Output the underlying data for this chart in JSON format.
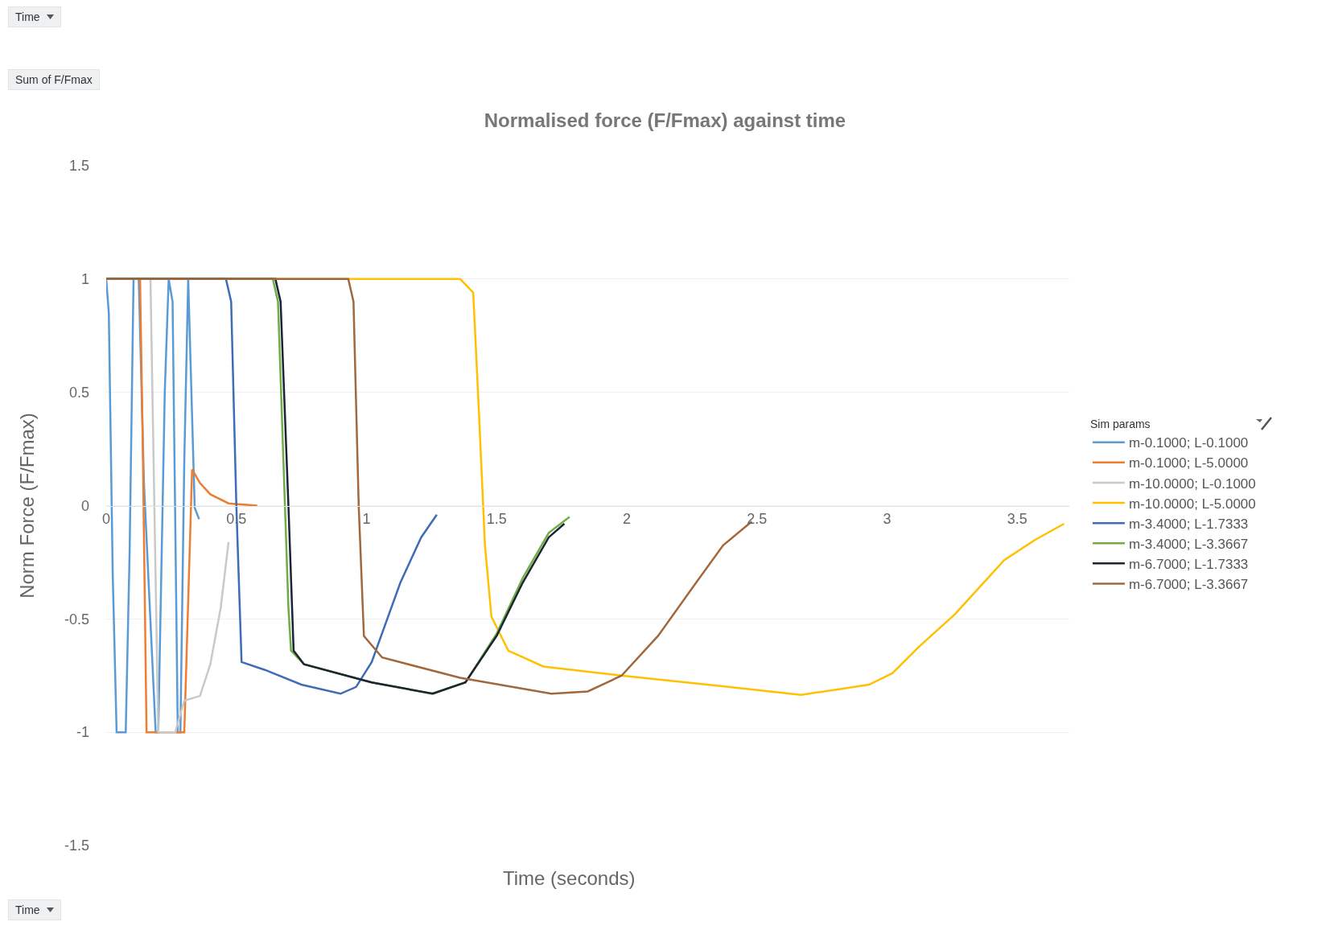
{
  "chart_data": {
    "type": "line",
    "title": "Normalised force (F/Fmax) against time",
    "xlabel": "Time (seconds)",
    "ylabel": "Norm Force (F/Fmax)",
    "legend_title": "Sim params",
    "annotations": [
      "Time",
      "Sum of F/Fmax",
      "Time"
    ],
    "xlim": [
      0,
      3.7
    ],
    "xticks": [
      0,
      0.5,
      1,
      1.5,
      2,
      2.5,
      3,
      3.5
    ],
    "ylim": [
      -1.5,
      1.5
    ],
    "yticks": [
      -1.5,
      -1,
      -0.5,
      0,
      0.5,
      1,
      1.5
    ],
    "grid": "y",
    "legend": "right",
    "marker": "none",
    "line_style": "solid",
    "series": [
      {
        "name": "m-0.1000; L-0.1000",
        "color": "#5b9bd5",
        "x": [
          0,
          0.01,
          0.025,
          0.04,
          0.075,
          0.09,
          0.105,
          0.125,
          0.145,
          0.19,
          0.2,
          0.225,
          0.24,
          0.255,
          0.275,
          0.285,
          0.3,
          0.315,
          0.34,
          0.357
        ],
        "values": [
          1,
          0.85,
          -0.3,
          -1,
          -1,
          -0.2,
          1,
          1,
          0.1,
          -1,
          -1,
          0.5,
          1,
          0.9,
          -1,
          -1,
          0.2,
          1,
          -0.01,
          -0.06
        ]
      },
      {
        "name": "m-0.1000; L-5.0000",
        "color": "#ed7d31",
        "x": [
          0,
          0.13,
          0.14,
          0.155,
          0.2,
          0.3,
          0.33,
          0.36,
          0.4,
          0.47,
          0.58
        ],
        "values": [
          1,
          1,
          0.3,
          -1,
          -1,
          -1,
          0.16,
          0.1,
          0.05,
          0.01,
          0
        ]
      },
      {
        "name": "m-10.0000; L-0.1000",
        "color": "#c9c9c9",
        "x": [
          0,
          0.17,
          0.185,
          0.2,
          0.265,
          0.3,
          0.36,
          0.4,
          0.44,
          0.47
        ],
        "values": [
          1,
          1,
          0,
          -1,
          -1,
          -0.86,
          -0.84,
          -0.7,
          -0.45,
          -0.16
        ]
      },
      {
        "name": "m-10.0000; L-5.0000",
        "color": "#ffc000",
        "x": [
          0,
          1.36,
          1.41,
          1.43,
          1.455,
          1.48,
          1.545,
          1.68,
          1.98,
          2.39,
          2.67,
          2.93,
          3.02,
          3.12,
          3.26,
          3.45,
          3.57,
          3.68
        ],
        "values": [
          1,
          1,
          0.94,
          0.46,
          -0.175,
          -0.49,
          -0.64,
          -0.71,
          -0.75,
          -0.8,
          -0.835,
          -0.79,
          -0.74,
          -0.625,
          -0.48,
          -0.24,
          -0.15,
          -0.08
        ]
      },
      {
        "name": "m-3.4000; L-1.7333",
        "color": "#3d6db5",
        "x": [
          0,
          0.46,
          0.48,
          0.5,
          0.52,
          0.61,
          0.75,
          0.9,
          0.96,
          1.02,
          1.13,
          1.21,
          1.27
        ],
        "values": [
          1,
          1,
          0.9,
          0,
          -0.69,
          -0.725,
          -0.79,
          -0.83,
          -0.8,
          -0.69,
          -0.34,
          -0.14,
          -0.04
        ]
      },
      {
        "name": "m-3.4000; L-3.3667",
        "color": "#70ad47",
        "x": [
          0,
          0.64,
          0.66,
          0.7,
          0.71,
          0.76,
          1.02,
          1.25,
          1.38,
          1.5,
          1.6,
          1.7,
          1.78
        ],
        "values": [
          1,
          1,
          0.9,
          -0.45,
          -0.64,
          -0.7,
          -0.78,
          -0.83,
          -0.78,
          -0.565,
          -0.32,
          -0.12,
          -0.05
        ]
      },
      {
        "name": "m-6.7000; L-1.7333",
        "color": "#1c2333",
        "x": [
          0,
          0.65,
          0.67,
          0.7,
          0.72,
          0.76,
          1.02,
          1.255,
          1.38,
          1.5,
          1.6,
          1.7,
          1.76
        ],
        "values": [
          1,
          1,
          0.9,
          0,
          -0.64,
          -0.7,
          -0.78,
          -0.83,
          -0.78,
          -0.575,
          -0.34,
          -0.14,
          -0.08
        ]
      },
      {
        "name": "m-6.7000; L-3.3667",
        "color": "#a0683c",
        "x": [
          0,
          0.93,
          0.95,
          0.97,
          0.99,
          1.06,
          1.36,
          1.71,
          1.85,
          1.98,
          2.12,
          2.26,
          2.37,
          2.48
        ],
        "values": [
          1,
          1,
          0.9,
          0,
          -0.575,
          -0.67,
          -0.76,
          -0.83,
          -0.82,
          -0.75,
          -0.575,
          -0.35,
          -0.175,
          -0.07
        ]
      }
    ]
  }
}
